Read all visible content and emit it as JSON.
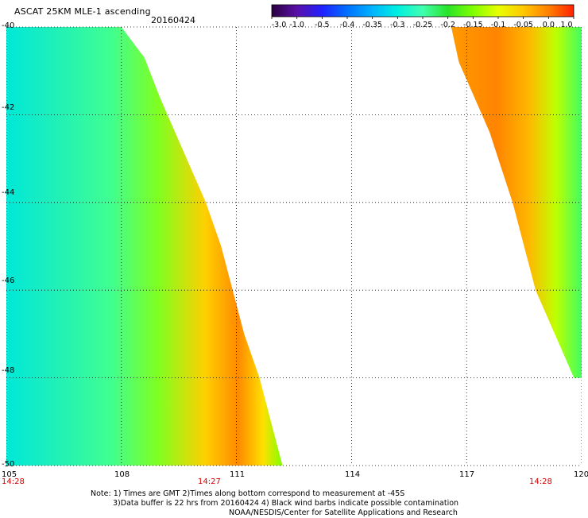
{
  "header": {
    "title": "ASCAT 25KM MLE-1 ascending",
    "date": "20160424"
  },
  "colorbar": {
    "tick_labels": [
      "-3.0",
      "-1.0",
      "-0.5",
      "-0.4",
      "-0.35",
      "-0.3",
      "-0.25",
      "-0.2",
      "-0.15",
      "-0.1",
      "-0.05",
      "0.0",
      "1.0"
    ],
    "colors": [
      "#2a003f",
      "#5a10a8",
      "#2020ff",
      "#0070ff",
      "#00b4ff",
      "#00f0e0",
      "#40ffb0",
      "#28e428",
      "#80ff00",
      "#e8ff00",
      "#ffc800",
      "#ff8000",
      "#ff2000"
    ]
  },
  "axes": {
    "lon_labels": [
      "105",
      "108",
      "111",
      "114",
      "117",
      "120"
    ],
    "lat_labels": [
      "-40",
      "-42",
      "-44",
      "-46",
      "-48",
      "-50"
    ],
    "lon_range": [
      105,
      120
    ],
    "lat_range": [
      -40,
      -50
    ]
  },
  "time_labels": [
    "14:28",
    "14:27",
    "14:28"
  ],
  "notes": {
    "line1": "Note: 1) Times are GMT 2)Times along bottom correspond to measurement at -45S",
    "line2": "3)Data buffer is 22 hrs from 20160424 4) Black wind barbs indicate possible contamination",
    "line3": "NOAA/NESDIS/Center for Satellite Applications and Research"
  },
  "swaths": [
    {
      "name": "west-swath",
      "lon_start": 105,
      "edge": [
        [
          -40,
          108.0
        ],
        [
          -40.7,
          108.6
        ],
        [
          -41.6,
          109.0
        ],
        [
          -42.4,
          109.4
        ],
        [
          -43.2,
          109.8
        ],
        [
          -44.0,
          110.2
        ],
        [
          -45.0,
          110.6
        ],
        [
          -46.0,
          110.9
        ],
        [
          -47.0,
          111.2
        ],
        [
          -48.0,
          111.6
        ],
        [
          -49.0,
          111.9
        ],
        [
          -50,
          112.2
        ]
      ]
    },
    {
      "name": "east-swath",
      "lon_end": 120,
      "edge": [
        [
          -40,
          116.6
        ],
        [
          -40.8,
          116.8
        ],
        [
          -41.6,
          117.2
        ],
        [
          -42.4,
          117.6
        ],
        [
          -43.2,
          117.9
        ],
        [
          -44.0,
          118.2
        ],
        [
          -45.0,
          118.5
        ],
        [
          -46.0,
          118.8
        ],
        [
          -46.8,
          119.2
        ],
        [
          -47.6,
          119.6
        ],
        [
          -48.0,
          119.8
        ]
      ]
    }
  ]
}
